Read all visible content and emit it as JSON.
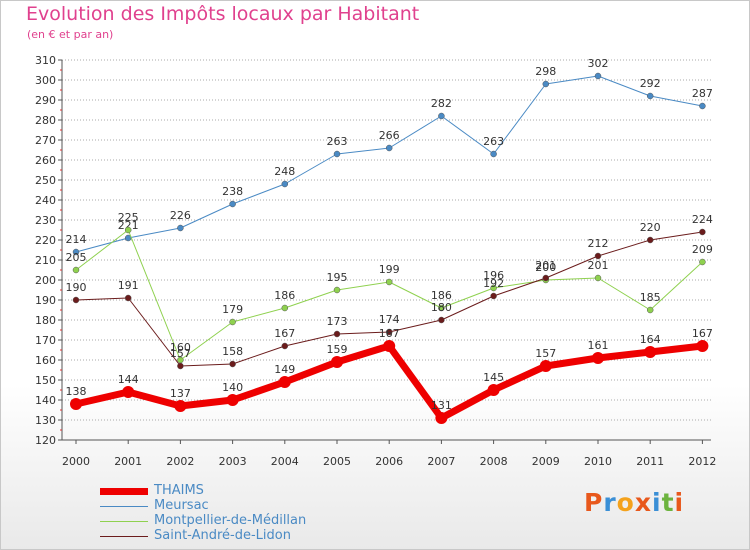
{
  "header": {
    "title": "Evolution des Impôts locaux par Habitant",
    "subtitle": "(en € et par an)"
  },
  "logo": {
    "text": "Proxiti",
    "colors": [
      "#e8581c",
      "#3a8fd6",
      "#f4a21c",
      "#e8581c",
      "#3a8fd6",
      "#6cb33e",
      "#e8581c"
    ]
  },
  "colors": {
    "title": "#e0418e",
    "grid": "#aaaaaa",
    "legend_text": "#4a8ac4"
  },
  "chart_data": {
    "type": "line",
    "title": "Evolution des Impôts locaux par Habitant",
    "subtitle": "(en € et par an)",
    "xlabel": "",
    "ylabel": "",
    "categories": [
      "2000",
      "2001",
      "2002",
      "2003",
      "2004",
      "2005",
      "2006",
      "2007",
      "2008",
      "2009",
      "2010",
      "2011",
      "2012"
    ],
    "ylim": [
      120,
      310
    ],
    "yticks": [
      120,
      130,
      140,
      150,
      160,
      170,
      180,
      190,
      200,
      210,
      220,
      230,
      240,
      250,
      260,
      270,
      280,
      290,
      300,
      310
    ],
    "grid": "horizontal dashed",
    "legend_position": "bottom-left",
    "series": [
      {
        "name": "THAIMS",
        "color": "#ee0000",
        "width": 7,
        "marker": 6,
        "values": [
          138,
          144,
          137,
          140,
          149,
          159,
          167,
          131,
          145,
          157,
          161,
          164,
          167
        ],
        "labels": [
          "138",
          "144",
          "137",
          "140",
          "149",
          "159",
          "167",
          "131",
          "145",
          "157",
          "161",
          "164",
          "167"
        ]
      },
      {
        "name": "Meursac",
        "color": "#4a8ac4",
        "width": 1,
        "marker": 3,
        "values": [
          214,
          221,
          226,
          238,
          248,
          263,
          266,
          282,
          263,
          298,
          302,
          292,
          287
        ],
        "labels": [
          "214",
          "221",
          "226",
          "238",
          "248",
          "263",
          "266",
          "282",
          "263",
          "298",
          "302",
          "292",
          "287"
        ]
      },
      {
        "name": "Montpellier-de-Médillan",
        "color": "#8fd14f",
        "width": 1,
        "marker": 3,
        "values": [
          205,
          225,
          160,
          179,
          186,
          195,
          199,
          186,
          196,
          200,
          201,
          185,
          209
        ],
        "labels": [
          "205",
          "225",
          "160",
          "179",
          "186",
          "195",
          "199",
          "186",
          "196",
          "200",
          "201",
          "185",
          "209"
        ]
      },
      {
        "name": "Saint-André-de-Lidon",
        "color": "#6b1c1c",
        "width": 1,
        "marker": 3,
        "values": [
          190,
          191,
          157,
          158,
          167,
          173,
          174,
          180,
          192,
          201,
          212,
          220,
          224
        ],
        "labels": [
          "190",
          "191",
          "157",
          "158",
          "167",
          "173",
          "174",
          "180",
          "192",
          "201",
          "212",
          "220",
          "224"
        ]
      }
    ]
  },
  "legend": {
    "items": [
      {
        "label": "THAIMS",
        "color": "#ee0000"
      },
      {
        "label": "Meursac",
        "color": "#4a8ac4"
      },
      {
        "label": "Montpellier-de-Médillan",
        "color": "#8fd14f"
      },
      {
        "label": "Saint-André-de-Lidon",
        "color": "#6b1c1c"
      }
    ]
  }
}
